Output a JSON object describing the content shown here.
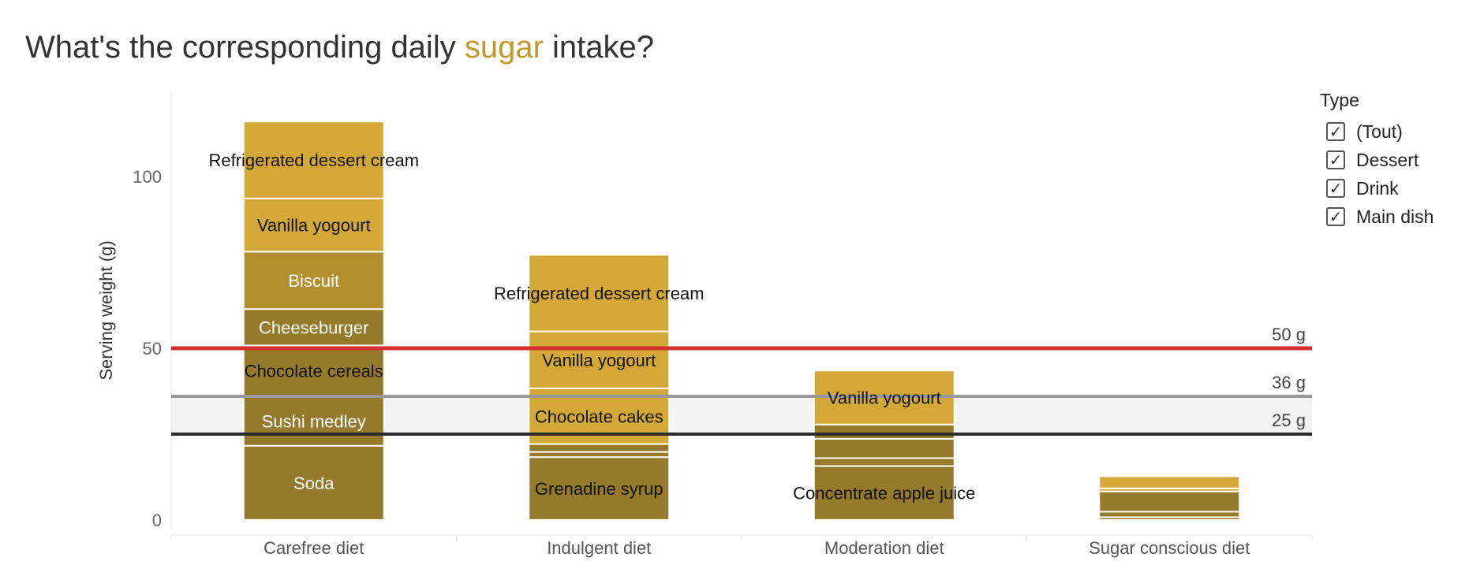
{
  "title": {
    "before": "What's the corresponding daily ",
    "highlight": "sugar",
    "after": " intake?",
    "highlight_color": "#c2982b"
  },
  "legend": {
    "title": "Type",
    "items": [
      {
        "label": "(Tout)",
        "checked": true
      },
      {
        "label": "Dessert",
        "checked": true
      },
      {
        "label": "Drink",
        "checked": true
      },
      {
        "label": "Main dish",
        "checked": true
      }
    ],
    "check_icon": "checkmark-icon"
  },
  "chart_data": {
    "type": "bar",
    "stacked": true,
    "ylabel": "Serving weight (g)",
    "xlabel": "",
    "ylim": [
      -3,
      125
    ],
    "yticks": [
      0,
      50,
      100
    ],
    "grid": false,
    "legend_placement": "right",
    "categories": [
      "Carefree diet",
      "Indulgent diet",
      "Moderation diet",
      "Sugar conscious diet"
    ],
    "colors": {
      "Main dish": "#957a2c",
      "Drink": "#957a2c",
      "Dessert": "#d4a838",
      "Snack": "#b2902f"
    },
    "stacks": [
      {
        "category": "Carefree diet",
        "segments": [
          {
            "label": "Soda",
            "value": 21.6,
            "type": "Drink"
          },
          {
            "label": "Sushi medley",
            "value": 14.4,
            "type": "Main dish"
          },
          {
            "label": "Chocolate cereals",
            "value": 14.8,
            "type": "Main dish"
          },
          {
            "label": "Cheeseburger",
            "value": 10.6,
            "type": "Main dish"
          },
          {
            "label": "Biscuit",
            "value": 16.7,
            "type": "Snack"
          },
          {
            "label": "Vanilla yogourt",
            "value": 15.5,
            "type": "Dessert"
          },
          {
            "label": "Refrigerated dessert cream",
            "value": 22.4,
            "type": "Dessert"
          }
        ]
      },
      {
        "category": "Indulgent diet",
        "segments": [
          {
            "label": "Grenadine syrup",
            "value": 18.3,
            "type": "Drink"
          },
          {
            "label": "",
            "value": 1.5,
            "type": "Drink"
          },
          {
            "label": "",
            "value": 2.3,
            "type": "Main dish"
          },
          {
            "label": "Chocolate cakes",
            "value": 16.2,
            "type": "Dessert"
          },
          {
            "label": "Vanilla yogourt",
            "value": 16.6,
            "type": "Dessert"
          },
          {
            "label": "Refrigerated dessert cream",
            "value": 22.3,
            "type": "Dessert"
          }
        ]
      },
      {
        "category": "Moderation diet",
        "segments": [
          {
            "label": "Concentrate apple juice",
            "value": 15.7,
            "type": "Drink"
          },
          {
            "label": "",
            "value": 2.3,
            "type": "Main dish"
          },
          {
            "label": "",
            "value": 5.6,
            "type": "Main dish"
          },
          {
            "label": "",
            "value": 4.2,
            "type": "Main dish"
          },
          {
            "label": "Vanilla yogourt",
            "value": 15.7,
            "type": "Dessert"
          }
        ]
      },
      {
        "category": "Sugar conscious diet",
        "segments": [
          {
            "label": "",
            "value": 0.8,
            "type": "Drink"
          },
          {
            "label": "",
            "value": 1.6,
            "type": "Main dish"
          },
          {
            "label": "",
            "value": 5.9,
            "type": "Main dish"
          },
          {
            "label": "",
            "value": 0.9,
            "type": "Dessert"
          },
          {
            "label": "",
            "value": 3.5,
            "type": "Dessert"
          }
        ]
      }
    ],
    "reference_lines": [
      {
        "label": "50 g",
        "value": 50,
        "color": "#d32f2f"
      },
      {
        "label": "36 g",
        "value": 36,
        "color": "#999999"
      },
      {
        "label": "25 g",
        "value": 25,
        "color": "#2b2b2b"
      }
    ],
    "shaded_band": {
      "from": 25,
      "to": 36,
      "color": "#f3f3f3"
    }
  }
}
